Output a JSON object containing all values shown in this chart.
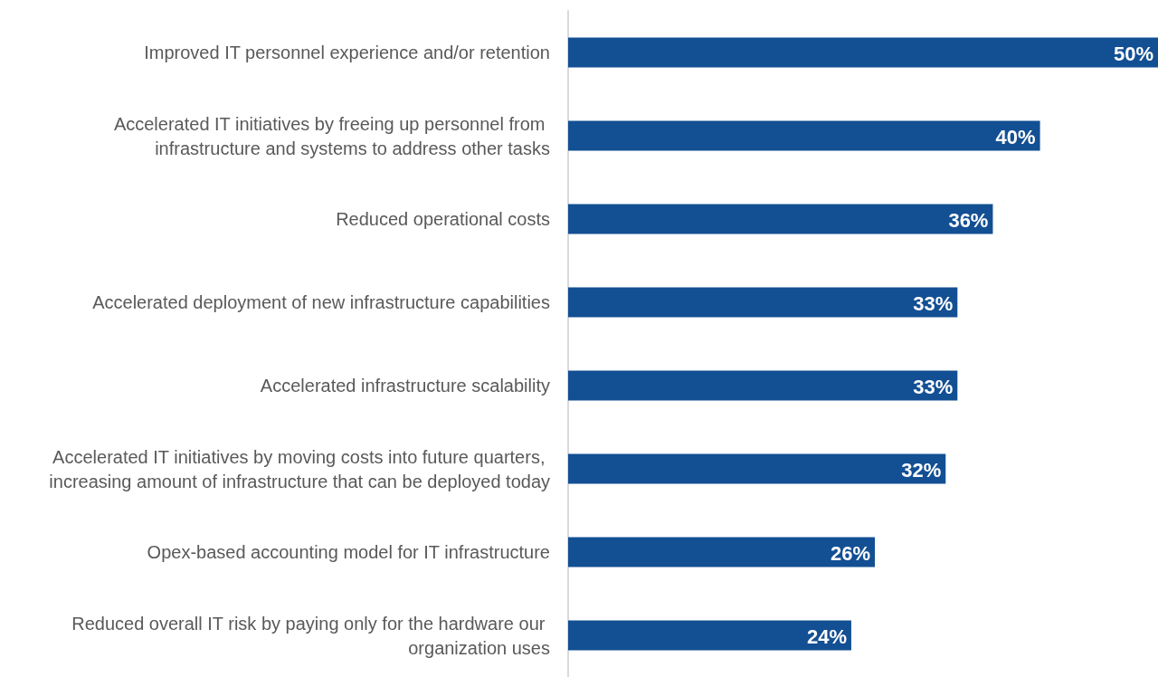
{
  "chart_data": {
    "type": "bar",
    "orientation": "horizontal",
    "categories": [
      "Improved IT personnel experience and/or retention",
      "Accelerated IT initiatives by freeing up personnel from infrastructure and systems to address other tasks",
      "Reduced operational costs",
      "Accelerated deployment of new infrastructure capabilities",
      "Accelerated infrastructure scalability",
      "Accelerated IT initiatives by moving costs into future quarters, increasing amount of infrastructure that can be deployed today",
      "Opex-based accounting model for IT infrastructure",
      "Reduced overall IT risk by paying only for the hardware our organization uses"
    ],
    "values": [
      50,
      40,
      36,
      33,
      33,
      32,
      26,
      24
    ],
    "value_labels": [
      "50%",
      "40%",
      "36%",
      "33%",
      "33%",
      "32%",
      "26%",
      "24%"
    ],
    "color": "#134f93",
    "xlim": [
      0,
      50
    ]
  }
}
